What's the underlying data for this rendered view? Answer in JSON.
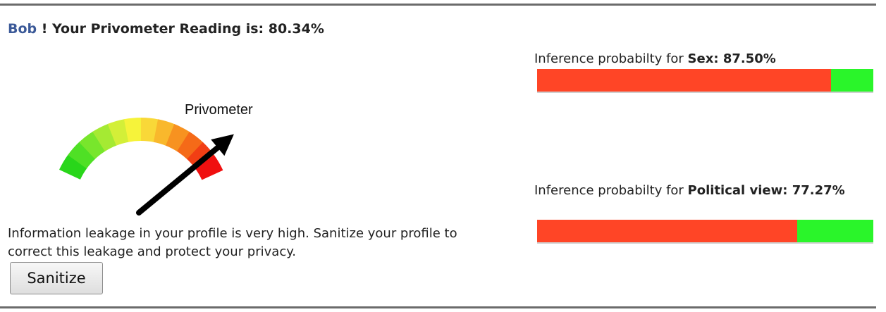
{
  "header": {
    "user_name": "Bob",
    "message": " ! Your Privometer Reading is: 80.34%"
  },
  "gauge": {
    "label": "Privometer",
    "reading_percent": 80.34
  },
  "leakage_message": "Information leakage in your profile is very high. Sanitize your profile to correct this leakage and protect your privacy.",
  "sanitize_button": "Sanitize",
  "inferences": [
    {
      "prefix": "Inference probabilty for ",
      "category": "Sex:",
      "value": "87.50%",
      "fraction": 0.875
    },
    {
      "prefix": "Inference probabilty for ",
      "category": "Political view:",
      "value": "77.27%",
      "fraction": 0.7727
    }
  ],
  "colors": {
    "bar_red": "#ff4526",
    "bar_green": "#2af52a",
    "user_link": "#3b5998"
  }
}
